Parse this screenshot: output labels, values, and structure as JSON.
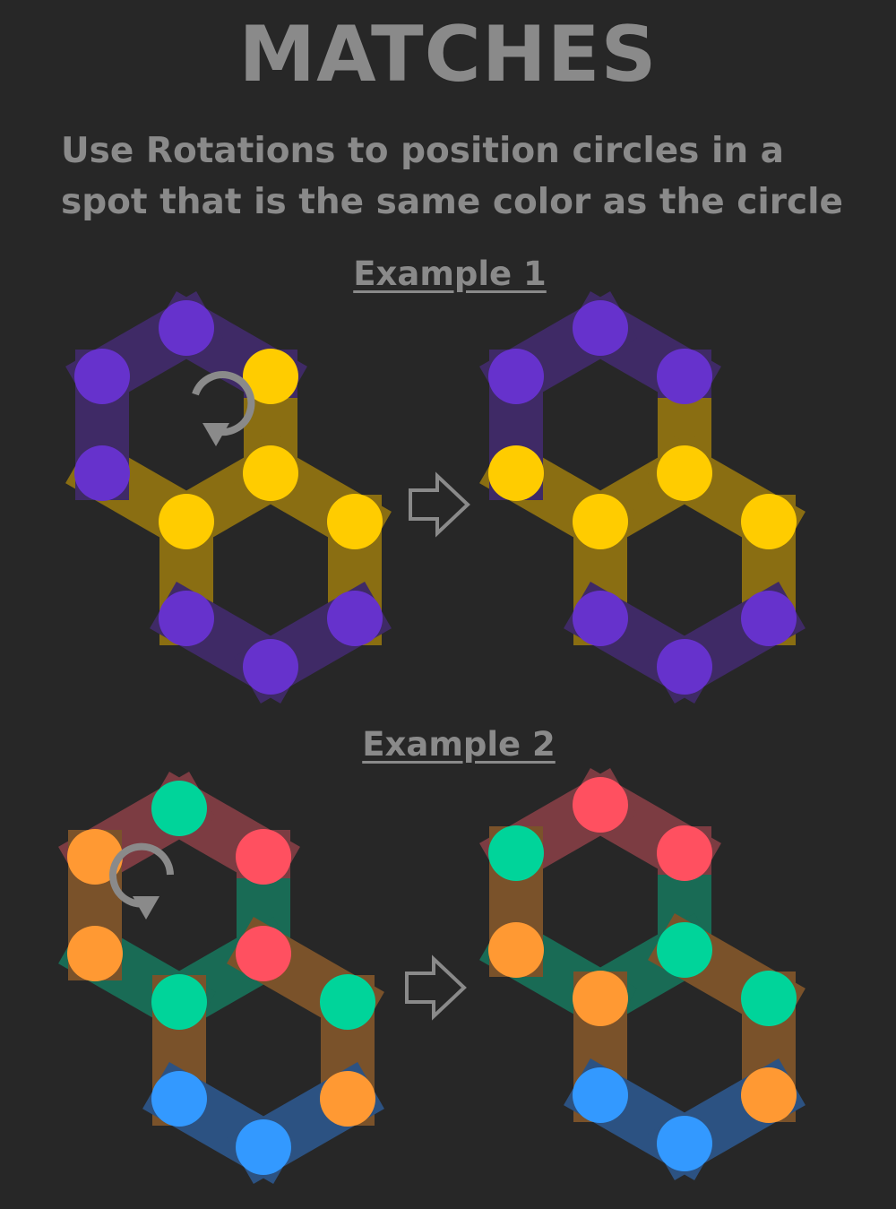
{
  "title": "MATCHES",
  "subtitle": "Use Rotations to position circles in a spot that is the same color as the circle",
  "colors": {
    "background": "#272727",
    "text": "#8a8a8a",
    "purple": "#6632cc",
    "purple_track": "#3f2a66",
    "yellow": "#ffcc00",
    "yellow_track": "#8a6e12",
    "green": "#00d49a",
    "green_track": "#196b55",
    "red": "#ff5060",
    "red_track": "#7c3c42",
    "orange": "#ff9933",
    "orange_track": "#7a522a",
    "blue": "#3399ff",
    "blue_track": "#2c5282"
  },
  "examples": [
    {
      "heading": "Example 1",
      "rotation_icon": "clockwise-rotate-icon",
      "arrow_icon": "right-arrow-icon",
      "before": {
        "track": [
          "purple",
          "purple",
          "purple",
          "yellow",
          "yellow",
          "yellow",
          "yellow",
          "yellow",
          "yellow",
          "purple",
          "purple",
          "purple"
        ],
        "circles": [
          "purple",
          "yellow",
          "yellow",
          "yellow",
          "purple",
          "purple",
          "yellow",
          "purple",
          "purple",
          "purple"
        ]
      },
      "after": {
        "track": [
          "purple",
          "purple",
          "purple",
          "yellow",
          "yellow",
          "yellow",
          "yellow",
          "yellow",
          "yellow",
          "purple",
          "purple",
          "purple"
        ],
        "circles": [
          "purple",
          "purple",
          "yellow",
          "yellow",
          "yellow",
          "purple",
          "yellow",
          "purple",
          "purple",
          "purple"
        ]
      }
    },
    {
      "heading": "Example 2",
      "rotation_icon": "counterclockwise-rotate-icon",
      "arrow_icon": "right-arrow-icon",
      "before": {
        "track": [
          "red",
          "red",
          "red",
          "green",
          "green",
          "green",
          "orange",
          "orange",
          "orange",
          "blue",
          "blue",
          "orange"
        ],
        "circles": [
          "green",
          "red",
          "red",
          "green",
          "orange",
          "orange",
          "green",
          "orange",
          "blue",
          "blue"
        ]
      },
      "after": {
        "track": [
          "red",
          "red",
          "red",
          "green",
          "green",
          "green",
          "orange",
          "orange",
          "orange",
          "blue",
          "blue",
          "orange"
        ],
        "circles": [
          "red",
          "red",
          "green",
          "orange",
          "orange",
          "green",
          "green",
          "orange",
          "blue",
          "blue"
        ]
      }
    }
  ]
}
